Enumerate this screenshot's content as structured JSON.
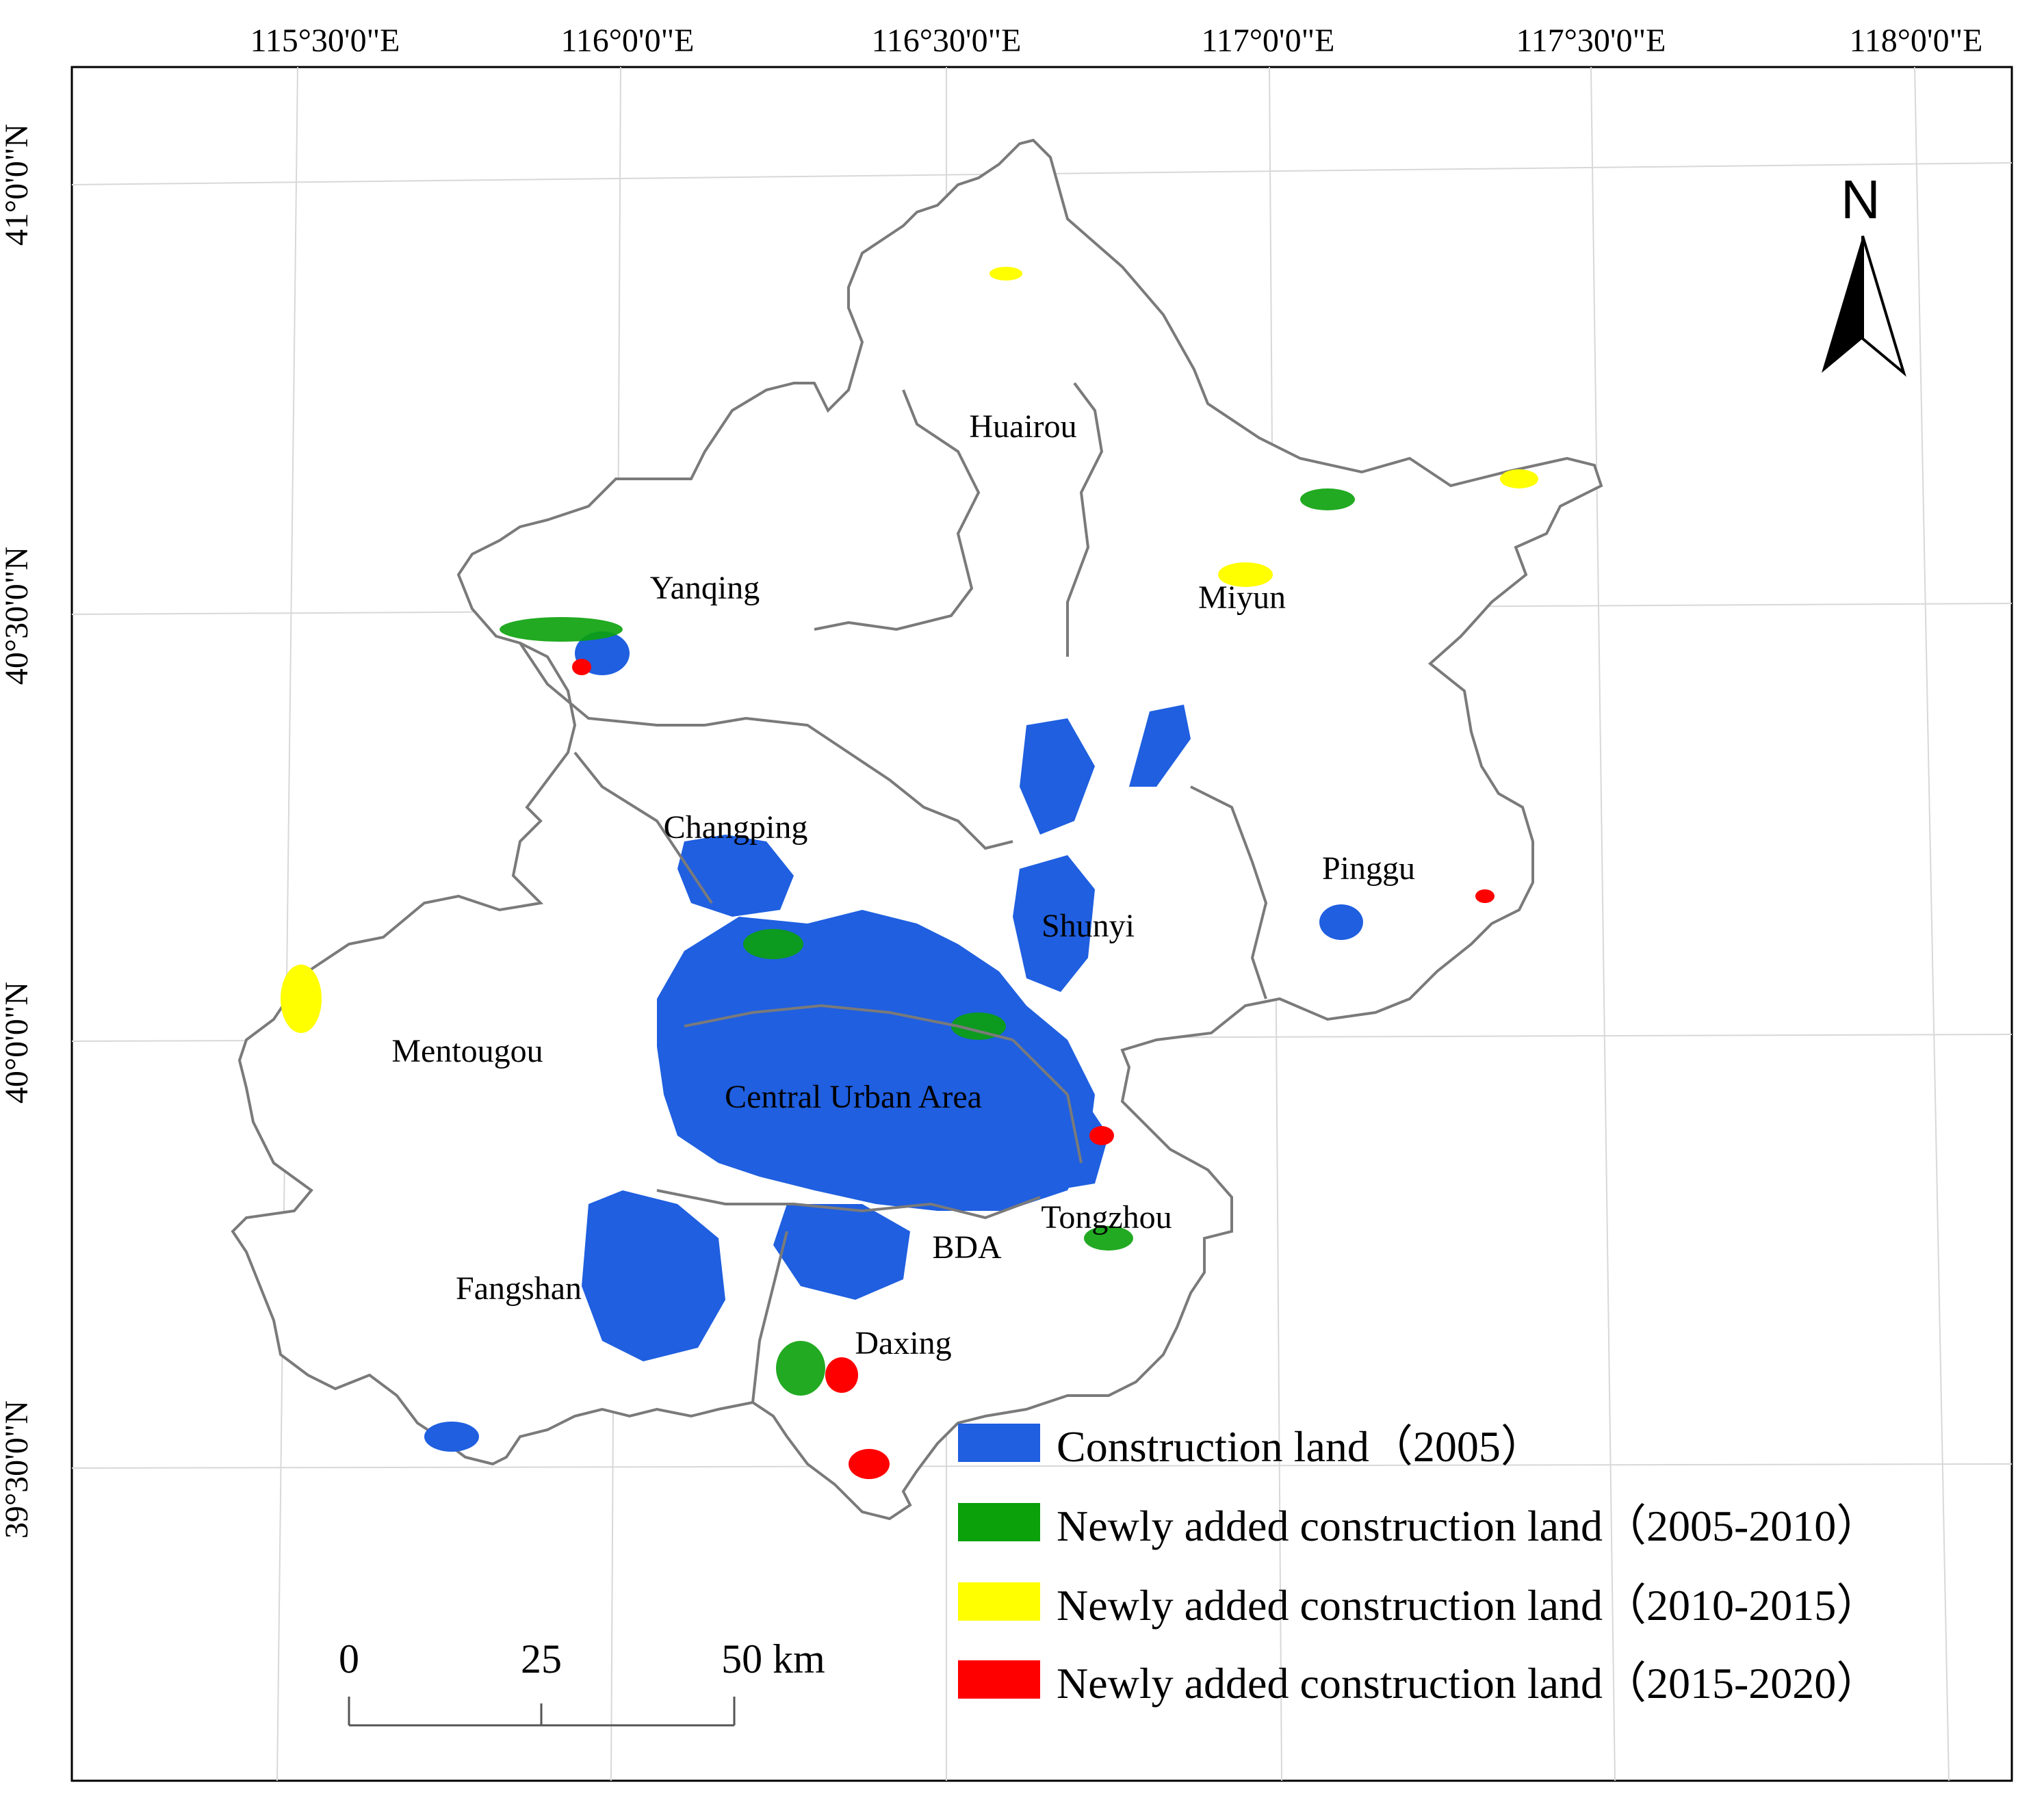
{
  "map": {
    "longitude_labels": [
      "115°30'0\"E",
      "116°0'0\"E",
      "116°30'0\"E",
      "117°0'0\"E",
      "117°30'0\"E",
      "118°0'0\"E"
    ],
    "latitude_labels": [
      "41°0'0\"N",
      "40°30'0\"N",
      "40°0'0\"N",
      "39°30'0\"N"
    ],
    "districts": [
      "Huairou",
      "Yanqing",
      "Miyun",
      "Changping",
      "Pinggu",
      "Shunyi",
      "Mentougou",
      "Central Urban Area",
      "Tongzhou",
      "BDA",
      "Fangshan",
      "Daxing"
    ],
    "north_arrow": {
      "letter": "N",
      "icon": "north-arrow-icon"
    },
    "scale_bar": {
      "ticks": [
        "0",
        "25",
        "50 km"
      ]
    },
    "legend": [
      {
        "label": "Construction land（2005）",
        "color": "#1f5fe0"
      },
      {
        "label": "Newly added construction land（2005-2010）",
        "color": "#0aa10a"
      },
      {
        "label": "Newly added construction land（2010-2015）",
        "color": "#ffff00"
      },
      {
        "label": "Newly added construction land（2015-2020）",
        "color": "#ff0000"
      }
    ],
    "colors": {
      "boundary": "#7a7a7a",
      "graticule": "#d8d8d8",
      "frame": "#000000"
    }
  }
}
